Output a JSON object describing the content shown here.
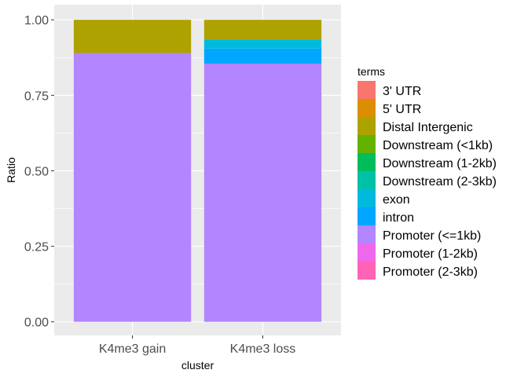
{
  "chart_data": {
    "type": "bar",
    "stacked": true,
    "xlabel": "cluster",
    "ylabel": "Ratio",
    "ylim": [
      0,
      1.05
    ],
    "yticks": [
      "0.00",
      "0.25",
      "0.50",
      "0.75",
      "1.00"
    ],
    "ytick_values": [
      0,
      0.25,
      0.5,
      0.75,
      1.0
    ],
    "grid": true,
    "legend_position": "right",
    "legend_title": "terms",
    "categories": [
      "K4me3 gain",
      "K4me3 loss"
    ],
    "series": [
      {
        "name": "3' UTR",
        "color": "#F8766D",
        "values": [
          0,
          0
        ]
      },
      {
        "name": "5' UTR",
        "color": "#DB8E00",
        "values": [
          0,
          0
        ]
      },
      {
        "name": "Distal Intergenic",
        "color": "#AEA200",
        "values": [
          0.11,
          0.065
        ]
      },
      {
        "name": "Downstream (<1kb)",
        "color": "#64B200",
        "values": [
          0,
          0
        ]
      },
      {
        "name": "Downstream (1-2kb)",
        "color": "#00BD5C",
        "values": [
          0,
          0
        ]
      },
      {
        "name": "Downstream (2-3kb)",
        "color": "#00C1A7",
        "values": [
          0,
          0
        ]
      },
      {
        "name": "exon",
        "color": "#00BADE",
        "values": [
          0,
          0.03
        ]
      },
      {
        "name": "intron",
        "color": "#00A6FF",
        "values": [
          0,
          0.05
        ]
      },
      {
        "name": "Promoter (<=1kb)",
        "color": "#B385FF",
        "values": [
          0.89,
          0.855
        ]
      },
      {
        "name": "Promoter (1-2kb)",
        "color": "#EF67EB",
        "values": [
          0,
          0
        ]
      },
      {
        "name": "Promoter (2-3kb)",
        "color": "#FF63B6",
        "values": [
          0,
          0
        ]
      }
    ]
  }
}
